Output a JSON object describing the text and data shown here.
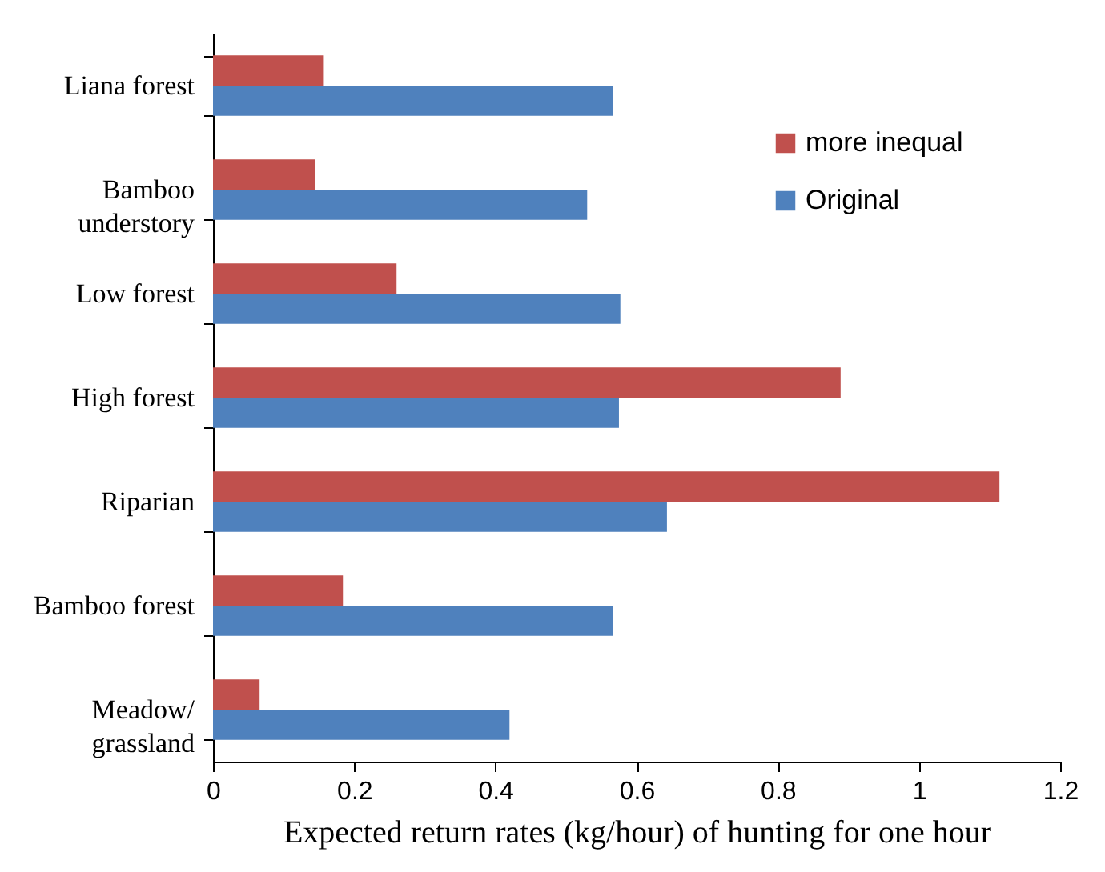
{
  "chart_data": {
    "type": "bar",
    "orientation": "horizontal",
    "xlabel": "Expected return rates (kg/hour) of hunting for one hour",
    "categories": [
      "Liana forest",
      "Bamboo\nunderstory",
      "Low forest",
      "High forest",
      "Riparian",
      "Bamboo forest",
      "Meadow/\ngrassland"
    ],
    "series": [
      {
        "name": "more inequal",
        "color": "#c0504d",
        "values": [
          0.157,
          0.145,
          0.26,
          0.889,
          1.114,
          0.184,
          0.066
        ]
      },
      {
        "name": "Original",
        "color": "#4f81bd",
        "values": [
          0.566,
          0.53,
          0.577,
          0.575,
          0.643,
          0.566,
          0.42
        ]
      }
    ],
    "xlim": [
      0,
      1.2
    ],
    "xticks": [
      0,
      0.2,
      0.4,
      0.6,
      0.8,
      1,
      1.2
    ],
    "grid": false,
    "legend": "top right"
  }
}
